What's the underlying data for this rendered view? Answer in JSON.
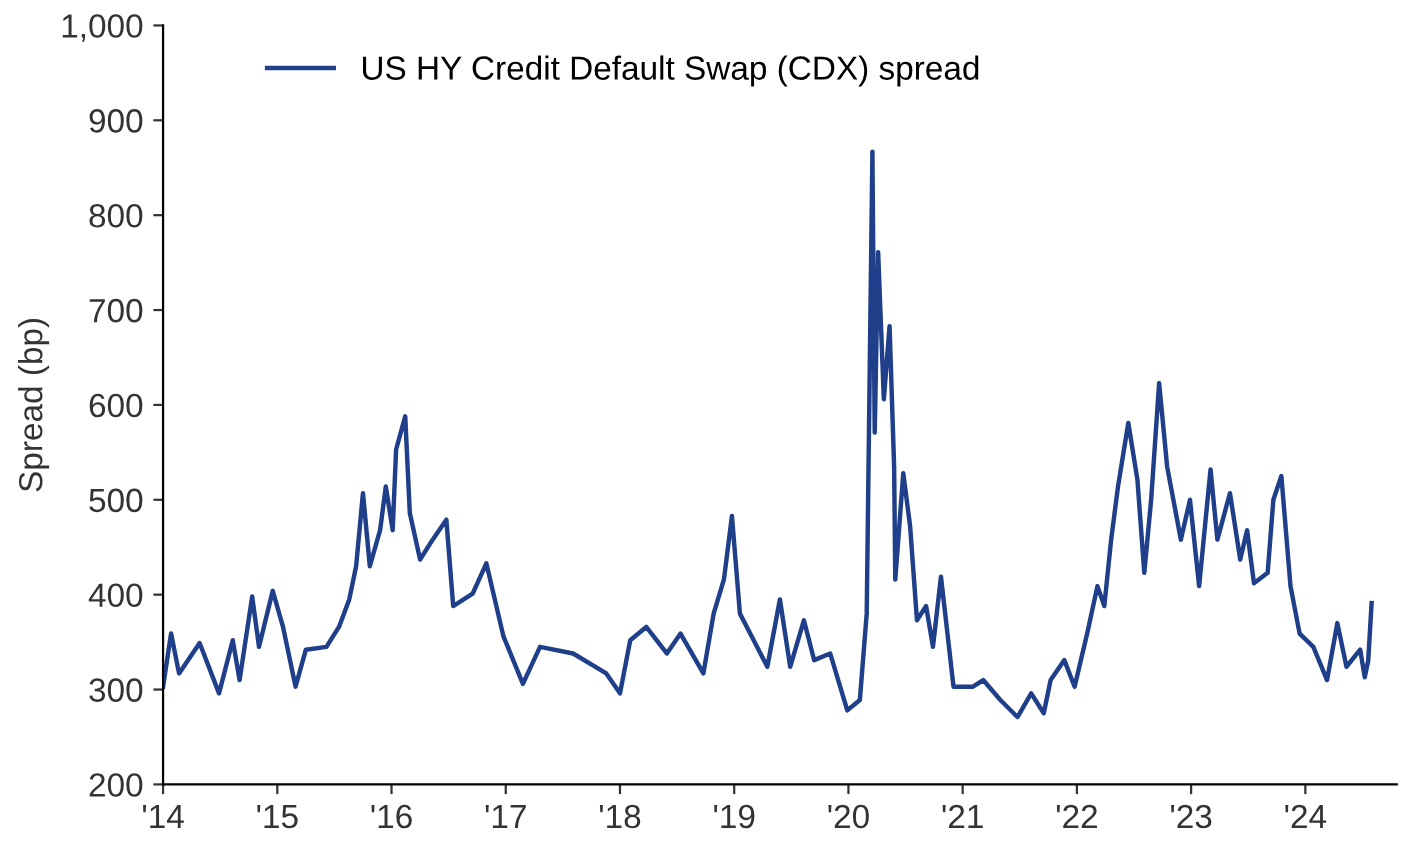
{
  "chart_data": {
    "type": "line",
    "ylabel": "Spread (bp)",
    "x": [
      2014.0,
      2014.07,
      2014.14,
      2014.32,
      2014.49,
      2014.61,
      2014.67,
      2014.78,
      2014.84,
      2014.96,
      2015.05,
      2015.16,
      2015.25,
      2015.43,
      2015.54,
      2015.63,
      2015.69,
      2015.75,
      2015.81,
      2015.9,
      2015.95,
      2016.01,
      2016.04,
      2016.12,
      2016.16,
      2016.25,
      2016.36,
      2016.48,
      2016.54,
      2016.71,
      2016.83,
      2016.98,
      2017.15,
      2017.3,
      2017.59,
      2017.88,
      2018.0,
      2018.09,
      2018.23,
      2018.41,
      2018.53,
      2018.73,
      2018.82,
      2018.91,
      2018.98,
      2019.05,
      2019.14,
      2019.29,
      2019.4,
      2019.49,
      2019.61,
      2019.7,
      2019.84,
      2019.99,
      2020.1,
      2020.16,
      2020.21,
      2020.23,
      2020.26,
      2020.31,
      2020.36,
      2020.4,
      2020.41,
      2020.48,
      2020.54,
      2020.6,
      2020.68,
      2020.74,
      2020.81,
      2020.92,
      2021.09,
      2021.18,
      2021.33,
      2021.48,
      2021.6,
      2021.71,
      2021.77,
      2021.89,
      2021.98,
      2022.09,
      2022.18,
      2022.24,
      2022.3,
      2022.36,
      2022.45,
      2022.53,
      2022.59,
      2022.65,
      2022.72,
      2022.79,
      2022.91,
      2022.99,
      2023.07,
      2023.17,
      2023.23,
      2023.34,
      2023.43,
      2023.49,
      2023.55,
      2023.67,
      2023.72,
      2023.79,
      2023.87,
      2023.95,
      2024.07,
      2024.19,
      2024.28,
      2024.36,
      2024.48,
      2024.52,
      2024.55,
      2024.58
    ],
    "series": [
      {
        "name": "US HY Credit Default Swap (CDX) spread",
        "color": "#1f3f8a",
        "values": [
          303,
          359,
          317,
          349,
          296,
          352,
          310,
          398,
          345,
          404,
          366,
          303,
          342,
          345,
          366,
          395,
          430,
          507,
          430,
          468,
          514,
          468,
          553,
          588,
          486,
          437,
          458,
          479,
          388,
          401,
          433,
          356,
          306,
          345,
          338,
          317,
          296,
          352,
          366,
          338,
          359,
          317,
          380,
          416,
          483,
          380,
          359,
          324,
          395,
          324,
          373,
          331,
          338,
          278,
          289,
          380,
          867,
          571,
          761,
          606,
          683,
          535,
          416,
          528,
          472,
          373,
          388,
          345,
          419,
          303,
          303,
          310,
          289,
          271,
          296,
          275,
          310,
          331,
          303,
          359,
          409,
          388,
          458,
          514,
          581,
          521,
          423,
          500,
          623,
          535,
          458,
          500,
          409,
          532,
          458,
          507,
          437,
          468,
          412,
          423,
          500,
          525,
          409,
          359,
          345,
          310,
          370,
          324,
          342,
          313,
          330,
          391
        ]
      }
    ],
    "xlim": [
      2014,
      2024.8
    ],
    "xticks": [
      {
        "value": 2014,
        "label": "'14"
      },
      {
        "value": 2015,
        "label": "'15"
      },
      {
        "value": 2016,
        "label": "'16"
      },
      {
        "value": 2017,
        "label": "'17"
      },
      {
        "value": 2018,
        "label": "'18"
      },
      {
        "value": 2019,
        "label": "'19"
      },
      {
        "value": 2020,
        "label": "'20"
      },
      {
        "value": 2021,
        "label": "'21"
      },
      {
        "value": 2022,
        "label": "'22"
      },
      {
        "value": 2023,
        "label": "'23"
      },
      {
        "value": 2024,
        "label": "'24"
      }
    ],
    "ylim": [
      200,
      1000
    ],
    "yticks": [
      200,
      300,
      400,
      500,
      600,
      700,
      800,
      900,
      {
        "value": 1000,
        "label": "1,000"
      }
    ],
    "grid": false,
    "legend": "top left",
    "marker": "none",
    "line_style": "solid"
  }
}
